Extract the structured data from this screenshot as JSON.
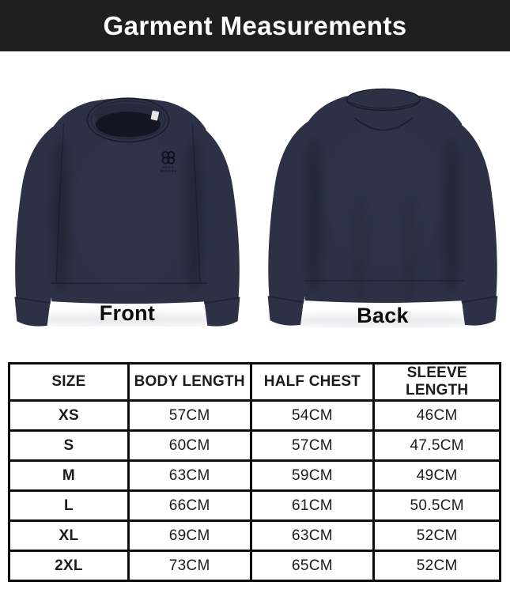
{
  "theme": {
    "header_bg": "#201f20",
    "header_fg": "#ffffff",
    "garment": "#2d3145",
    "garment_dark": "#171a27",
    "border": "#0d0d0d",
    "text": "#1b1b1b"
  },
  "header": {
    "title": "Garment Measurements"
  },
  "product": {
    "color_name_hex": "#2d3145",
    "front": {
      "label": "Front",
      "logo": {
        "brand_line1": "ECOO",
        "brand_line2": "MODERN"
      }
    },
    "back": {
      "label": "Back"
    }
  },
  "table": {
    "headers": [
      "SIZE",
      "BODY LENGTH",
      "HALF CHEST",
      "SLEEVE LENGTH"
    ],
    "rows": [
      [
        "XS",
        "57CM",
        "54CM",
        "46CM"
      ],
      [
        "S",
        "60CM",
        "57CM",
        "47.5CM"
      ],
      [
        "M",
        "63CM",
        "59CM",
        "49CM"
      ],
      [
        "L",
        "66CM",
        "61CM",
        "50.5CM"
      ],
      [
        "XL",
        "69CM",
        "63CM",
        "52CM"
      ],
      [
        "2XL",
        "73CM",
        "65CM",
        "52CM"
      ]
    ]
  },
  "chart_data": {
    "type": "table",
    "title": "Garment Measurements",
    "columns": [
      "SIZE",
      "BODY LENGTH",
      "HALF CHEST",
      "SLEEVE LENGTH"
    ],
    "rows": [
      [
        "XS",
        "57CM",
        "54CM",
        "46CM"
      ],
      [
        "S",
        "60CM",
        "57CM",
        "47.5CM"
      ],
      [
        "M",
        "63CM",
        "59CM",
        "49CM"
      ],
      [
        "L",
        "66CM",
        "61CM",
        "50.5CM"
      ],
      [
        "XL",
        "69CM",
        "63CM",
        "52CM"
      ],
      [
        "2XL",
        "73CM",
        "65CM",
        "52CM"
      ]
    ],
    "units": "CM"
  }
}
